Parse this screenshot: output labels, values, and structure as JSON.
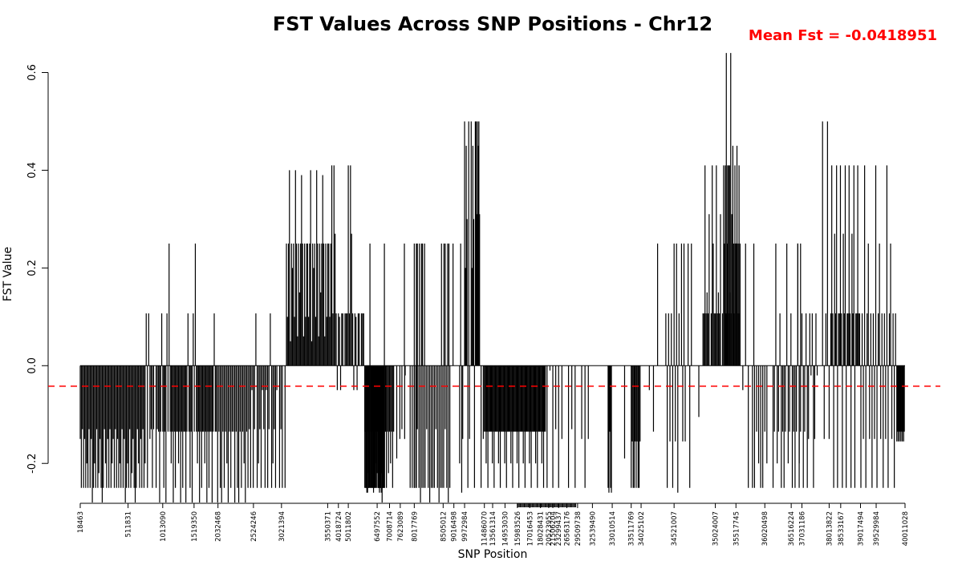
{
  "chart_data": {
    "type": "bar",
    "title": "FST Values Across SNP Positions - Chr12",
    "xlabel": "SNP Position",
    "ylabel": "FST Value",
    "ylim": [
      -0.28,
      0.65
    ],
    "yticks": [
      -0.2,
      0.0,
      0.2,
      0.4,
      0.6
    ],
    "ytick_labels": [
      "-0.2",
      "0.0",
      "0.2",
      "0.4",
      "0.6"
    ],
    "mean_line": {
      "value": -0.0418951,
      "label": "Mean Fst = -0.0418951",
      "color": "#ff0000",
      "style": "dashed"
    },
    "bar_color": "#000000",
    "grid": false,
    "xtick_labels": [
      "18463",
      "511831",
      "1013090",
      "1519350",
      "2032468",
      "2524246",
      "3021394",
      "3550371",
      "4018724",
      "5011802",
      "6497552",
      "7008714",
      "7623089",
      "8017769",
      "8505012",
      "9016498",
      "9972984",
      "11486070",
      "13561314",
      "14953030",
      "15983526",
      "17016453",
      "18028431",
      "20523955",
      "21506204",
      "23299437",
      "26563176",
      "29509738",
      "32539490",
      "33010514",
      "33511769",
      "34025102",
      "34521007",
      "35024007",
      "35517745",
      "36020498",
      "36516224",
      "37031186",
      "38013822",
      "38533167",
      "39017494",
      "39529984",
      "40011028"
    ],
    "segments": [
      {
        "from": 0.0,
        "to": 0.08,
        "n": 60,
        "values": [
          -0.15,
          -0.25,
          -0.13,
          -0.25,
          -0.15,
          -0.25,
          -0.2,
          -0.25,
          -0.13,
          -0.25,
          -0.15,
          -0.28,
          -0.25,
          -0.2,
          -0.25,
          -0.13,
          -0.25,
          -0.22,
          -0.15,
          -0.25,
          -0.28,
          -0.25,
          -0.13,
          -0.2,
          -0.25,
          -0.15,
          -0.25,
          -0.13,
          -0.25,
          -0.2
        ]
      },
      {
        "from": 0.08,
        "to": 0.095,
        "n": 10,
        "values": [
          0.107,
          -0.25,
          0.107,
          -0.15,
          -0.13,
          -0.25,
          -0.13,
          0.0,
          -0.25,
          -0.13
        ]
      },
      {
        "from": 0.095,
        "to": 0.165,
        "n": 55,
        "values": [
          -0.135,
          -0.28,
          -0.135,
          0.107,
          -0.135,
          -0.25,
          -0.135,
          -0.28,
          0.107,
          -0.135,
          0.25,
          -0.135,
          -0.2,
          -0.135,
          -0.28,
          -0.135,
          -0.25,
          -0.135,
          -0.135,
          -0.2,
          -0.135,
          -0.28,
          -0.135,
          -0.25,
          -0.135
        ]
      },
      {
        "from": 0.165,
        "to": 0.205,
        "n": 25,
        "values": [
          -0.135,
          -0.28,
          -0.135,
          -0.25,
          -0.28,
          -0.135,
          -0.25,
          -0.135,
          -0.2,
          -0.28,
          -0.135,
          -0.25,
          -0.135
        ]
      },
      {
        "from": 0.205,
        "to": 0.24,
        "n": 22,
        "values": [
          -0.13,
          -0.25,
          -0.05,
          -0.25,
          -0.13,
          0.107,
          -0.25,
          -0.2,
          -0.13,
          -0.25,
          -0.05
        ]
      },
      {
        "from": 0.24,
        "to": 0.25,
        "n": 6,
        "values": [
          0.0,
          -0.25,
          -0.13,
          -0.25,
          0.0,
          -0.25
        ]
      },
      {
        "from": 0.25,
        "to": 0.305,
        "n": 45,
        "values": [
          0.25,
          0.1,
          0.25,
          0.4,
          0.05,
          0.25,
          0.2,
          0.25,
          0.1,
          0.4,
          0.25,
          0.06,
          0.25,
          0.15,
          0.25,
          0.39,
          0.25,
          0.06,
          0.25,
          0.1,
          0.25
        ]
      },
      {
        "from": 0.305,
        "to": 0.345,
        "n": 30,
        "values": [
          0.41,
          0.107,
          0.41,
          0.27,
          0.107,
          -0.05,
          0.107,
          0.1,
          -0.05,
          0.107,
          0.107,
          0.0,
          0.107,
          0.107,
          0.107
        ]
      },
      {
        "from": 0.345,
        "to": 0.38,
        "n": 28,
        "values": [
          -0.135,
          -0.25,
          -0.26,
          -0.135,
          -0.25,
          0.25,
          -0.135,
          -0.25,
          -0.135,
          -0.22,
          -0.135,
          -0.2,
          -0.135,
          -0.25
        ]
      },
      {
        "from": 0.38,
        "to": 0.395,
        "n": 4,
        "values": [
          -0.135,
          -0.19,
          -0.15,
          0.0
        ]
      },
      {
        "from": 0.395,
        "to": 0.345,
        "n": 0,
        "values": []
      },
      {
        "from": 0.345,
        "to": 0.36,
        "n": 0,
        "values": []
      },
      {
        "from": 0.34,
        "to": 0.36,
        "n": 0,
        "values": []
      },
      {
        "from": 0.38,
        "to": 0.41,
        "n": 0,
        "values": []
      },
      {
        "from": 0.34,
        "to": 0.36,
        "n": 0,
        "values": []
      },
      {
        "from": 0.345,
        "to": 0.365,
        "n": 0,
        "values": []
      },
      {
        "from": 0.345,
        "to": 0.345,
        "n": 0,
        "values": []
      },
      {
        "from": 0.3435,
        "to": 0.3435,
        "n": 0,
        "values": []
      },
      {
        "from": 0.345,
        "to": 0.345,
        "n": 0,
        "values": []
      },
      {
        "from": 0.34,
        "to": 0.34,
        "n": 0,
        "values": []
      },
      {
        "from": 0.34,
        "to": 0.34,
        "n": 0,
        "values": []
      },
      {
        "from": 0.34,
        "to": 0.34,
        "n": 0,
        "values": []
      },
      {
        "from": 0.34,
        "to": 0.34,
        "n": 0,
        "values": []
      },
      {
        "from": 0.34,
        "to": 0.34,
        "n": 0,
        "values": []
      },
      {
        "from": 0.345,
        "to": 0.345,
        "n": 0,
        "values": []
      },
      {
        "from": 0.345,
        "to": 0.345,
        "n": 0,
        "values": []
      },
      {
        "from": 0.345,
        "to": 0.345,
        "n": 0,
        "values": []
      },
      {
        "from": 0.345,
        "to": 0.345,
        "n": 0,
        "values": []
      },
      {
        "from": 0.345,
        "to": 0.345,
        "n": 0,
        "values": []
      },
      {
        "from": 0.345,
        "to": 0.345,
        "n": 0,
        "values": []
      },
      {
        "from": 0.345,
        "to": 0.345,
        "n": 0,
        "values": []
      },
      {
        "from": 0.345,
        "to": 0.345,
        "n": 0,
        "values": []
      },
      {
        "from": 0.345,
        "to": 0.345,
        "n": 0,
        "values": []
      },
      {
        "from": 0.345,
        "to": 0.345,
        "n": 0,
        "values": []
      },
      {
        "from": 0.345,
        "to": 0.345,
        "n": 0,
        "values": []
      },
      {
        "from": 0.345,
        "to": 0.345,
        "n": 0,
        "values": []
      },
      {
        "from": 0.345,
        "to": 0.345,
        "n": 0,
        "values": []
      },
      {
        "from": 0.345,
        "to": 0.345,
        "n": 0,
        "values": []
      },
      {
        "from": 0.345,
        "to": 0.345,
        "n": 0,
        "values": []
      },
      {
        "from": 0.345,
        "to": 0.345,
        "n": 0,
        "values": []
      },
      {
        "from": 0.345,
        "to": 0.345,
        "n": 0,
        "values": []
      },
      {
        "from": 0.345,
        "to": 0.345,
        "n": 0,
        "values": []
      },
      {
        "from": 0.345,
        "to": 0.345,
        "n": 0,
        "values": []
      },
      {
        "from": 0.345,
        "to": 0.345,
        "n": 0,
        "values": []
      },
      {
        "from": 0.345,
        "to": 0.345,
        "n": 0,
        "values": []
      },
      {
        "from": 0.345,
        "to": 0.345,
        "n": 0,
        "values": []
      },
      {
        "from": 0.345,
        "to": 0.345,
        "n": 0,
        "values": []
      },
      {
        "from": 0.345,
        "to": 0.345,
        "n": 0,
        "values": []
      },
      {
        "from": 0.345,
        "to": 0.345,
        "n": 0,
        "values": []
      }
    ]
  }
}
